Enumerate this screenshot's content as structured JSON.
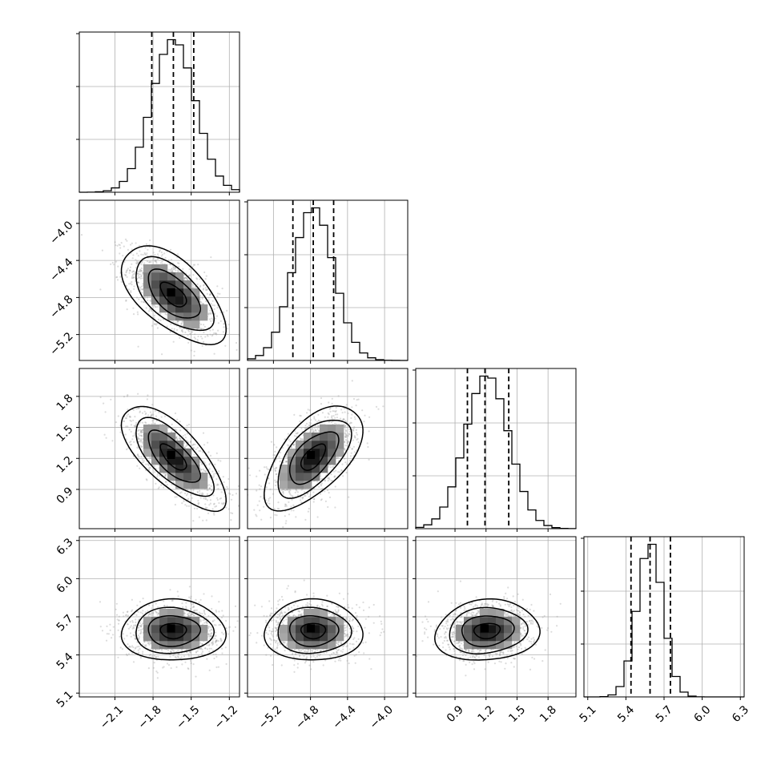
{
  "chart_data": {
    "type": "corner",
    "grid": true,
    "parameters": [
      {
        "range": [
          -2.38,
          -1.12
        ],
        "ticks": [
          "−2.1",
          "−1.8",
          "−1.5",
          "−1.2"
        ],
        "tick_values": [
          -2.1,
          -1.8,
          -1.5,
          -1.2
        ],
        "mean": -1.64,
        "sd": 0.17,
        "quantiles": [
          -1.81,
          -1.64,
          -1.48
        ]
      },
      {
        "range": [
          -5.48,
          -3.75
        ],
        "ticks": [
          "−5.2",
          "−4.8",
          "−4.4",
          "−4.0"
        ],
        "tick_values": [
          -5.2,
          -4.8,
          -4.4,
          -4.0
        ],
        "mean": -4.77,
        "sd": 0.22,
        "quantiles": [
          -4.99,
          -4.77,
          -4.55
        ]
      },
      {
        "range": [
          0.52,
          2.07
        ],
        "ticks": [
          "0.9",
          "1.2",
          "1.5",
          "1.8"
        ],
        "tick_values": [
          0.9,
          1.2,
          1.5,
          1.8
        ],
        "mean": 1.21,
        "sd": 0.21,
        "quantiles": [
          1.02,
          1.19,
          1.42
        ]
      },
      {
        "range": [
          5.07,
          6.33
        ],
        "ticks": [
          "5.1",
          "5.4",
          "5.7",
          "6.0",
          "6.3"
        ],
        "tick_values": [
          5.1,
          5.4,
          5.7,
          6.0,
          6.3
        ],
        "mean": 5.59,
        "sd": 0.1,
        "quantiles": [
          5.44,
          5.59,
          5.75
        ]
      }
    ],
    "correlations": [
      [
        1,
        -0.6,
        -0.72,
        0.0
      ],
      [
        -0.6,
        1,
        0.6,
        0.0
      ],
      [
        -0.72,
        0.6,
        1,
        0.1
      ],
      [
        0.0,
        0.0,
        0.1,
        1
      ]
    ],
    "histogram_bins": 20,
    "contour_levels_sigma": [
      0.5,
      1.0,
      1.5,
      2.0
    ],
    "colors": {
      "marks": "#000000",
      "grid": "#b0b0b0",
      "points": "#9a9a9a"
    }
  }
}
